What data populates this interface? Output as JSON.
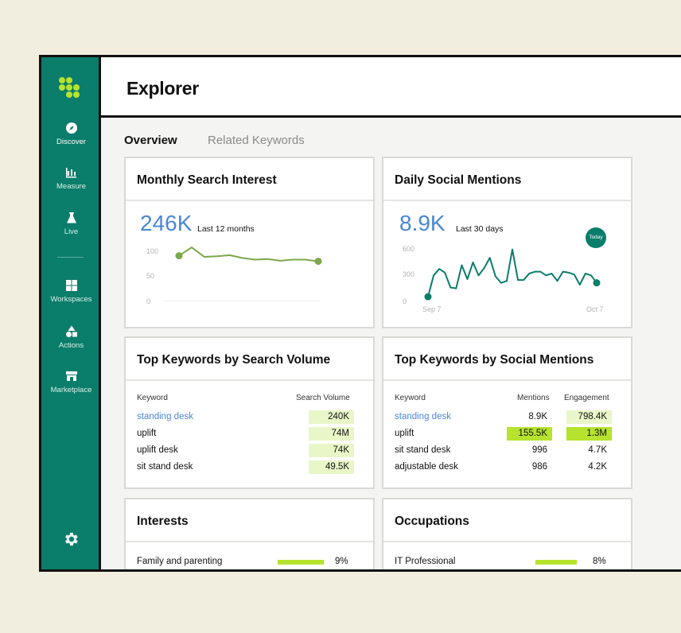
{
  "sidebar": {
    "items": [
      {
        "label": "Discover",
        "icon": "compass-icon"
      },
      {
        "label": "Measure",
        "icon": "bar-chart-icon"
      },
      {
        "label": "Live",
        "icon": "flask-icon"
      },
      {
        "label": "Workspaces",
        "icon": "grid-icon"
      },
      {
        "label": "Actions",
        "icon": "shapes-icon"
      },
      {
        "label": "Marketplace",
        "icon": "store-icon"
      }
    ],
    "active": "Discover",
    "settings_icon": "gear-icon"
  },
  "header": {
    "title": "Explorer"
  },
  "tabs": [
    {
      "label": "Overview",
      "active": true
    },
    {
      "label": "Related Keywords",
      "active": false
    }
  ],
  "monthly": {
    "title": "Monthly Search Interest",
    "value": "246K",
    "period": "Last 12 months",
    "yticks": [
      "100",
      "50",
      "0"
    ]
  },
  "daily": {
    "title": "Daily Social Mentions",
    "value": "8.9K",
    "period": "Last 30 days",
    "yticks": [
      "600",
      "300",
      "0"
    ],
    "xticks": [
      "Sep 7",
      "Oct 7"
    ],
    "badge": "Today"
  },
  "top_search": {
    "title": "Top Keywords by Search Volume",
    "headers": [
      "Keyword",
      "Search Volume"
    ],
    "rows": [
      {
        "keyword": "standing desk",
        "volume": "240K"
      },
      {
        "keyword": "uplift",
        "volume": "74M"
      },
      {
        "keyword": "uplift desk",
        "volume": "74K"
      },
      {
        "keyword": "sit stand desk",
        "volume": "49.5K"
      }
    ]
  },
  "top_social": {
    "title": "Top Keywords by Social Mentions",
    "headers": [
      "Keyword",
      "Mentions",
      "Engagement"
    ],
    "rows": [
      {
        "keyword": "standing desk",
        "mentions": "8.9K",
        "engagement": "798.4K"
      },
      {
        "keyword": "uplift",
        "mentions": "155.5K",
        "engagement": "1.3M"
      },
      {
        "keyword": "sit stand desk",
        "mentions": "996",
        "engagement": "4.7K"
      },
      {
        "keyword": "adjustable desk",
        "mentions": "986",
        "engagement": "4.2K"
      }
    ]
  },
  "interests": {
    "title": "Interests",
    "rows": [
      {
        "label": "Family and parenting",
        "pct": "9%",
        "fraction": 0.09
      }
    ]
  },
  "occupations": {
    "title": "Occupations",
    "rows": [
      {
        "label": "IT Professional",
        "pct": "8%",
        "fraction": 0.08
      }
    ]
  },
  "colors": {
    "brand": "#0b7d6b",
    "accent": "#b6e32d",
    "accent_light": "#e9f6c8",
    "link": "#4a87d6",
    "line_monthly": "#7aa94a",
    "line_daily": "#0b7d6b"
  },
  "chart_data": [
    {
      "type": "line",
      "title": "Monthly Search Interest",
      "ylim": [
        0,
        100
      ],
      "x": [
        1,
        2,
        3,
        4,
        5,
        6,
        7,
        8,
        9,
        10,
        11,
        12
      ],
      "values": [
        82,
        97,
        80,
        81,
        83,
        78,
        75,
        76,
        73,
        75,
        75,
        72
      ]
    },
    {
      "type": "line",
      "title": "Daily Social Mentions",
      "ylim": [
        0,
        600
      ],
      "x_range": [
        "Sep 7",
        "Oct 7"
      ],
      "values": [
        50,
        280,
        350,
        310,
        150,
        140,
        390,
        240,
        420,
        280,
        360,
        470,
        270,
        200,
        220,
        560,
        230,
        230,
        300,
        320,
        320,
        280,
        300,
        220,
        320,
        310,
        290,
        180,
        300,
        280,
        200
      ]
    }
  ]
}
